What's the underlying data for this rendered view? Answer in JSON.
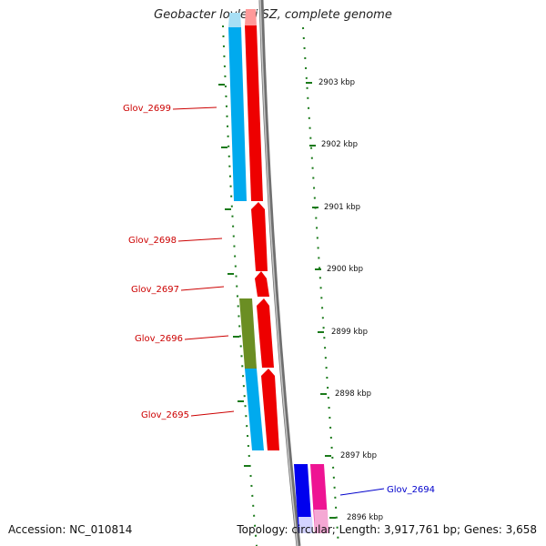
{
  "title": "Geobacter lovleyi SZ, complete genome",
  "accession": "Accession: NC_010814",
  "topology": "Topology: circular; Length: 3,917,761 bp; Genes: 3,658",
  "colors": {
    "backbone": "#808080",
    "tick": "#1a7a1a",
    "cyan": "#00aaee",
    "red": "#ee0000",
    "olive": "#6b8e23",
    "blue": "#0000ee",
    "magenta": "#ee1493",
    "label_red": "#cc0000",
    "label_blue": "#0000cc"
  },
  "ticks": [
    {
      "label": "2903 kbp"
    },
    {
      "label": "2902 kbp"
    },
    {
      "label": "2901 kbp"
    },
    {
      "label": "2900 kbp"
    },
    {
      "label": "2899 kbp"
    },
    {
      "label": "2898 kbp"
    },
    {
      "label": "2897 kbp"
    },
    {
      "label": "2896 kbp"
    }
  ],
  "genes": [
    {
      "name": "Glov_2699",
      "color": "red"
    },
    {
      "name": "Glov_2698",
      "color": "red"
    },
    {
      "name": "Glov_2697",
      "color": "red"
    },
    {
      "name": "Glov_2696",
      "color": "red"
    },
    {
      "name": "Glov_2695",
      "color": "red"
    },
    {
      "name": "Glov_2694",
      "color": "blue"
    }
  ]
}
